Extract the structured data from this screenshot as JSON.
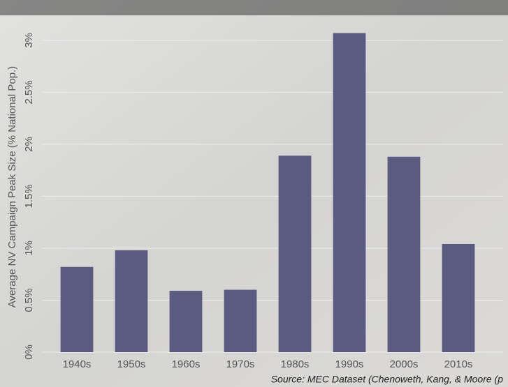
{
  "chart_data": {
    "type": "bar",
    "y_label": "Average NV Campaign Peak Size (% National Pop.)",
    "source": "Source: MEC Dataset (Chenoweth, Kang, & Moore (p",
    "categories": [
      "1940s",
      "1950s",
      "1960s",
      "1970s",
      "1980s",
      "1990s",
      "2000s",
      "2010s"
    ],
    "values": [
      0.82,
      0.98,
      0.59,
      0.6,
      1.89,
      3.07,
      1.88,
      1.04
    ],
    "color": "#5b5b82",
    "ylim": [
      0,
      3.2
    ],
    "yticks": [
      {
        "value": 0,
        "label": "0%"
      },
      {
        "value": 0.5,
        "label": "0.5%"
      },
      {
        "value": 1,
        "label": "1%"
      },
      {
        "value": 1.5,
        "label": "1.5%"
      },
      {
        "value": 2,
        "label": "2%"
      },
      {
        "value": 2.5,
        "label": "2.5%"
      },
      {
        "value": 3,
        "label": "3%"
      }
    ],
    "grid": true
  }
}
